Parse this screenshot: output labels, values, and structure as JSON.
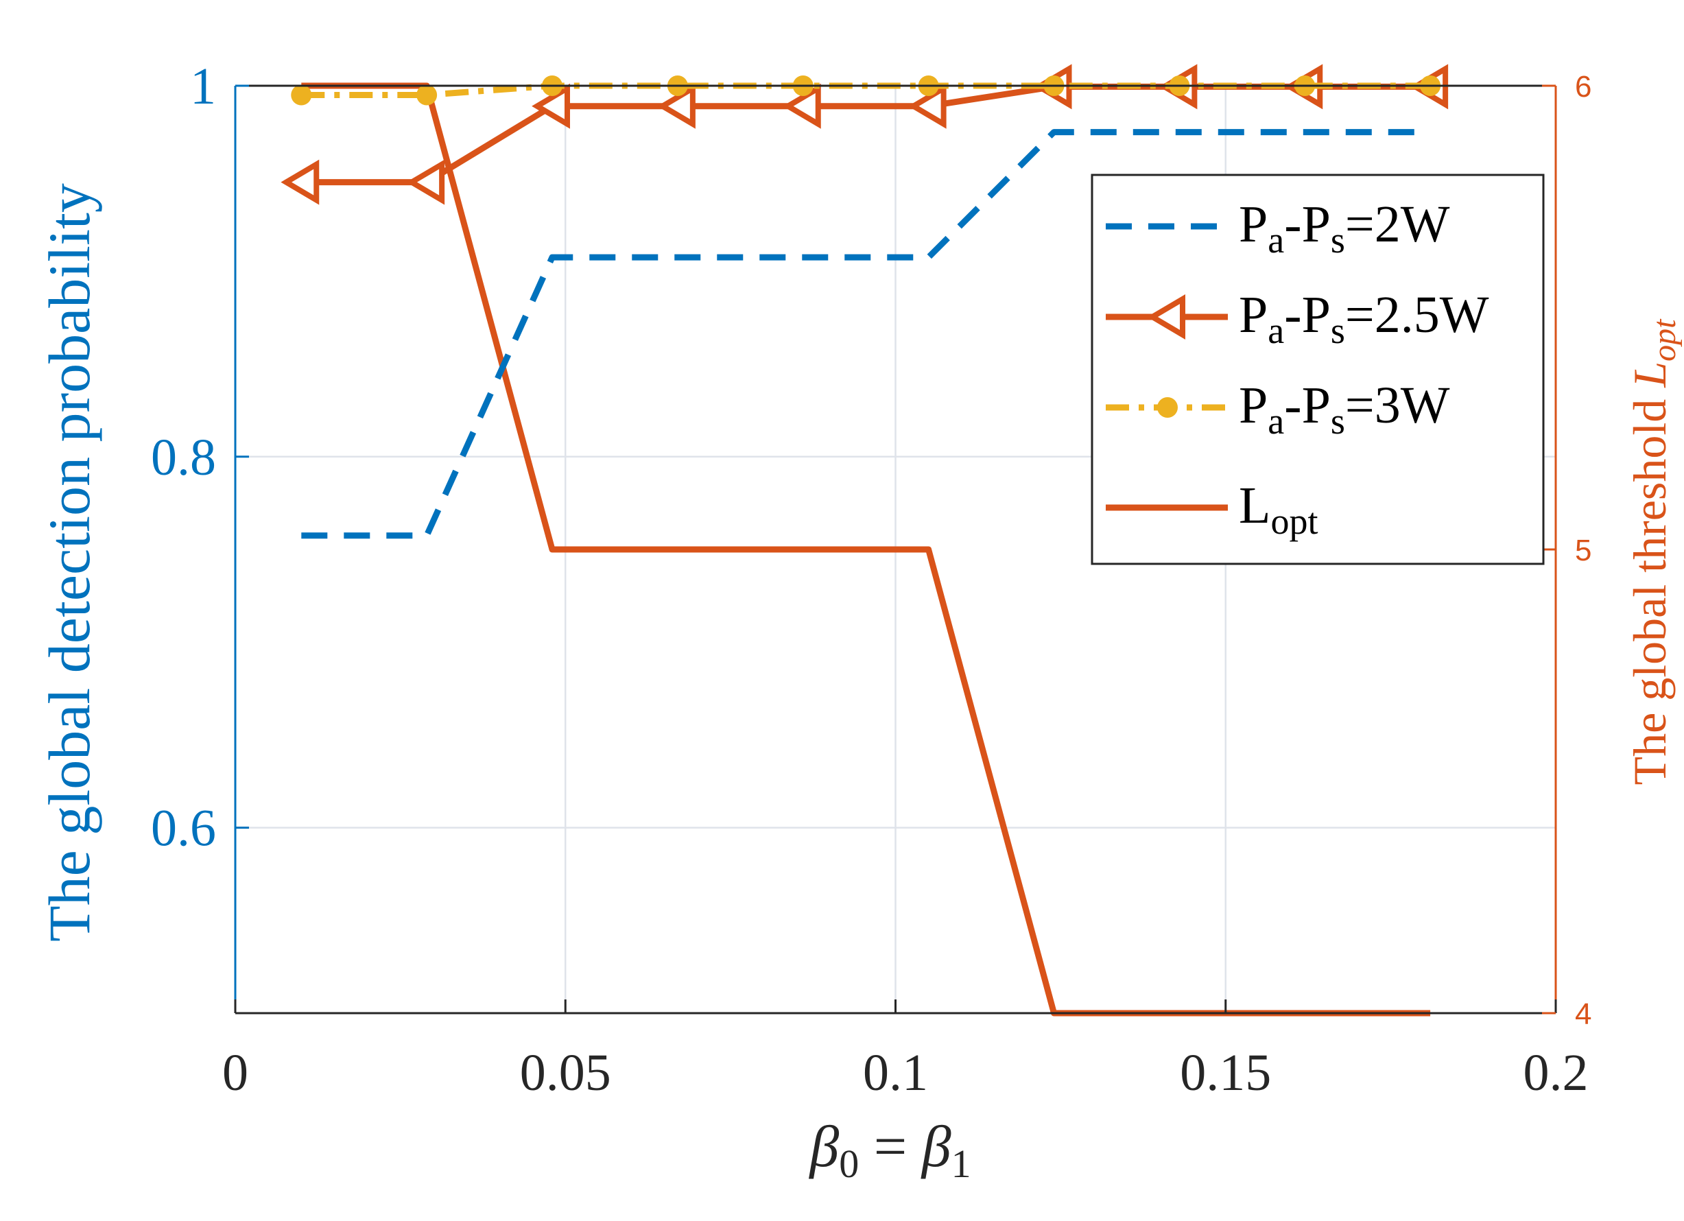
{
  "chart_data": {
    "type": "line",
    "x": [
      0.01,
      0.029,
      0.048,
      0.067,
      0.086,
      0.105,
      0.124,
      0.143,
      0.162,
      0.181
    ],
    "xlim": [
      0,
      0.2
    ],
    "xticks": [
      "0",
      "0.05",
      "0.1",
      "0.15",
      "0.2"
    ],
    "xticks_values": [
      0,
      0.05,
      0.1,
      0.15,
      0.2
    ],
    "xlabel": {
      "base": "β",
      "sub0": "0",
      "eq": " = ",
      "sub1": "1"
    },
    "ylabel_left": "The global detection probability",
    "ylim_left": [
      0.5,
      1.0
    ],
    "yticks_left": [
      "0.6",
      "0.8",
      "1"
    ],
    "yticks_left_values": [
      0.6,
      0.8,
      1.0
    ],
    "ylabel_right": {
      "text": "The global threshold ",
      "sym": "L",
      "sub": "opt"
    },
    "ylim_right": [
      4,
      6
    ],
    "yticks_right": [
      "4",
      "5",
      "6"
    ],
    "yticks_right_values": [
      4,
      5,
      6
    ],
    "grid": true,
    "legend_position": "top-right",
    "series": [
      {
        "name": "Pa-Ps=2W",
        "axis": "left",
        "color": "#0072BD",
        "style": "dashed",
        "marker": "none",
        "values": [
          0.7575,
          0.7575,
          0.9075,
          0.9075,
          0.9075,
          0.9075,
          0.975,
          0.975,
          0.975,
          0.975
        ]
      },
      {
        "name": "Pa-Ps=2.5W",
        "axis": "left",
        "color": "#D95319",
        "style": "solid",
        "marker": "triangle-left",
        "values": [
          0.948,
          0.948,
          0.989,
          0.989,
          0.989,
          0.989,
          0.9995,
          0.9995,
          0.9995,
          0.9995
        ]
      },
      {
        "name": "Pa-Ps=3W",
        "axis": "left",
        "color": "#EDB120",
        "style": "dashdot",
        "marker": "circle",
        "values": [
          0.995,
          0.995,
          1.0,
          1.0,
          1.0,
          1.0,
          1.0,
          1.0,
          1.0,
          1.0
        ]
      },
      {
        "name": "Lopt",
        "axis": "right",
        "color": "#D95319",
        "style": "solid",
        "marker": "none",
        "values": [
          6,
          6,
          5,
          5,
          5,
          5,
          4,
          4,
          4,
          4
        ]
      }
    ],
    "legend": [
      {
        "p1": "P",
        "s1": "a",
        "dash": "-",
        "p2": "P",
        "s2": "s",
        "rest": "=2W"
      },
      {
        "p1": "P",
        "s1": "a",
        "dash": "-",
        "p2": "P",
        "s2": "s",
        "rest": "=2.5W"
      },
      {
        "p1": "P",
        "s1": "a",
        "dash": "-",
        "p2": "P",
        "s2": "s",
        "rest": "=3W"
      },
      {
        "p1": "L",
        "s1": "opt"
      }
    ]
  }
}
